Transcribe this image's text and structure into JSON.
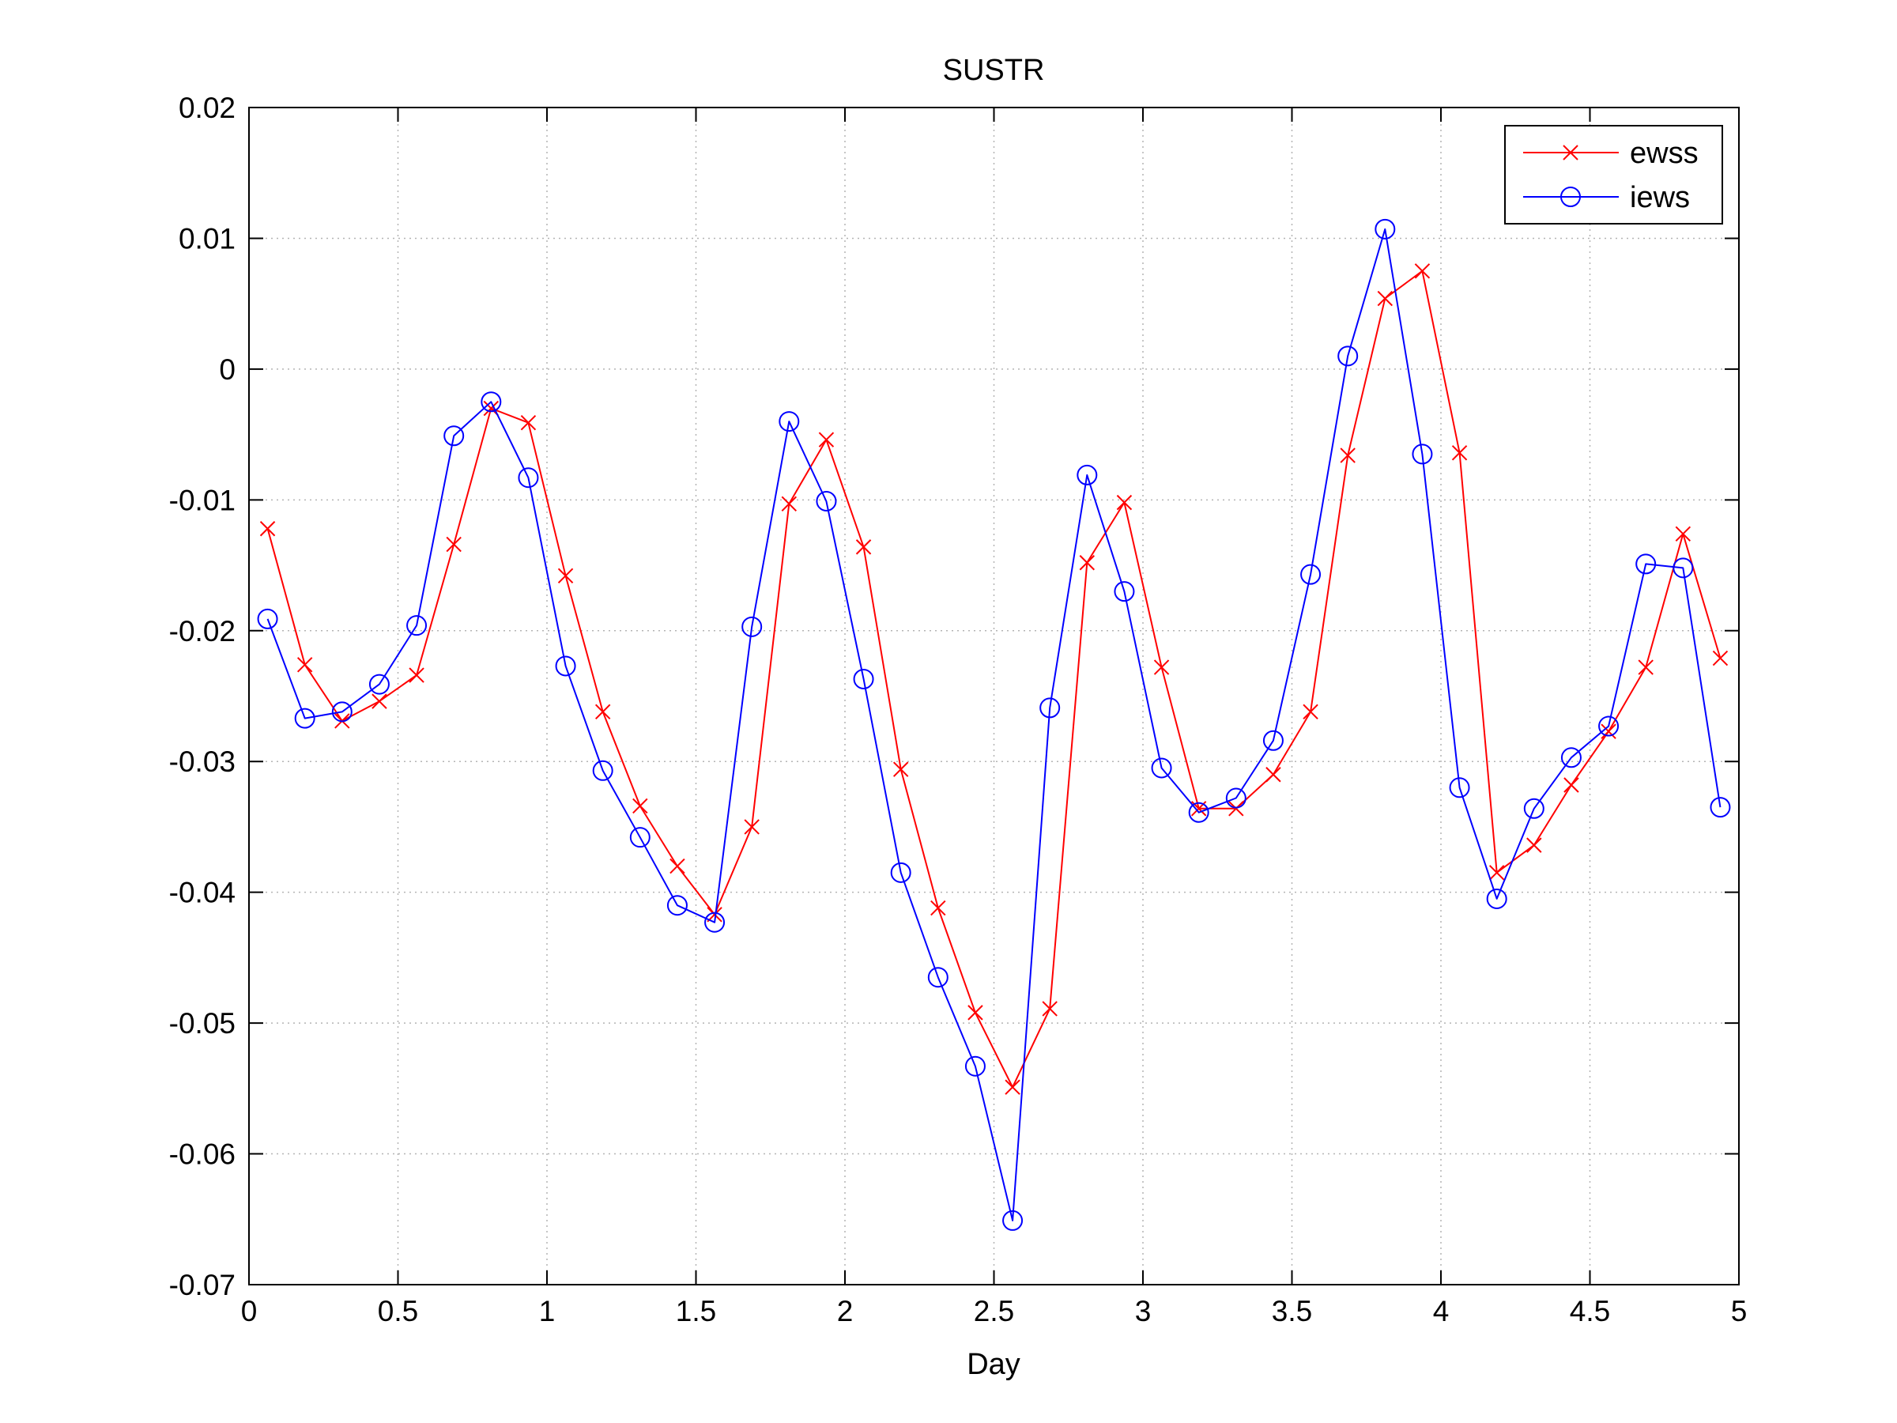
{
  "chart_data": {
    "type": "line",
    "title": "SUSTR",
    "xlabel": "Day",
    "ylabel": "",
    "xlim": [
      0,
      5
    ],
    "ylim": [
      -0.07,
      0.02
    ],
    "xticks": [
      0,
      0.5,
      1,
      1.5,
      2,
      2.5,
      3,
      3.5,
      4,
      4.5,
      5
    ],
    "xtick_labels": [
      "0",
      "0.5",
      "1",
      "1.5",
      "2",
      "2.5",
      "3",
      "3.5",
      "4",
      "4.5",
      "5"
    ],
    "yticks": [
      -0.07,
      -0.06,
      -0.05,
      -0.04,
      -0.03,
      -0.02,
      -0.01,
      0,
      0.01,
      0.02
    ],
    "ytick_labels": [
      "-0.07",
      "-0.06",
      "-0.05",
      "-0.04",
      "-0.03",
      "-0.02",
      "-0.01",
      "0",
      "0.01",
      "0.02"
    ],
    "grid": true,
    "legend_position": "top-right",
    "x": [
      0.0625,
      0.1875,
      0.3125,
      0.4375,
      0.5625,
      0.6875,
      0.8125,
      0.9375,
      1.0625,
      1.1875,
      1.3125,
      1.4375,
      1.5625,
      1.6875,
      1.8125,
      1.9375,
      2.0625,
      2.1875,
      2.3125,
      2.4375,
      2.5625,
      2.6875,
      2.8125,
      2.9375,
      3.0625,
      3.1875,
      3.3125,
      3.4375,
      3.5625,
      3.6875,
      3.8125,
      3.9375,
      4.0625,
      4.1875,
      4.3125,
      4.4375,
      4.5625,
      4.6875,
      4.8125,
      4.9375
    ],
    "series": [
      {
        "name": "ewss",
        "color": "#ff0000",
        "marker": "x",
        "values": [
          -0.0122,
          -0.0226,
          -0.0269,
          -0.0254,
          -0.0234,
          -0.0134,
          -0.003,
          -0.0041,
          -0.0158,
          -0.0262,
          -0.0334,
          -0.038,
          -0.0417,
          -0.035,
          -0.0103,
          -0.0054,
          -0.0136,
          -0.0306,
          -0.0412,
          -0.0492,
          -0.0549,
          -0.0489,
          -0.0148,
          -0.0102,
          -0.0228,
          -0.0336,
          -0.0336,
          -0.031,
          -0.0262,
          -0.0066,
          0.0054,
          0.0075,
          -0.0064,
          -0.0385,
          -0.0364,
          -0.0318,
          -0.0277,
          -0.0228,
          -0.0126,
          -0.0221
        ]
      },
      {
        "name": "iews",
        "color": "#0000ff",
        "marker": "o",
        "values": [
          -0.0191,
          -0.0267,
          -0.0262,
          -0.0241,
          -0.0196,
          -0.0051,
          -0.0025,
          -0.0083,
          -0.0227,
          -0.0307,
          -0.0358,
          -0.041,
          -0.0423,
          -0.0197,
          -0.004,
          -0.0101,
          -0.0237,
          -0.0385,
          -0.0465,
          -0.0533,
          -0.0651,
          -0.0259,
          -0.0081,
          -0.017,
          -0.0305,
          -0.0339,
          -0.0328,
          -0.0284,
          -0.0157,
          0.001,
          0.0107,
          -0.0065,
          -0.032,
          -0.0405,
          -0.0336,
          -0.0297,
          -0.0273,
          -0.0149,
          -0.0152,
          -0.0335
        ]
      }
    ]
  }
}
